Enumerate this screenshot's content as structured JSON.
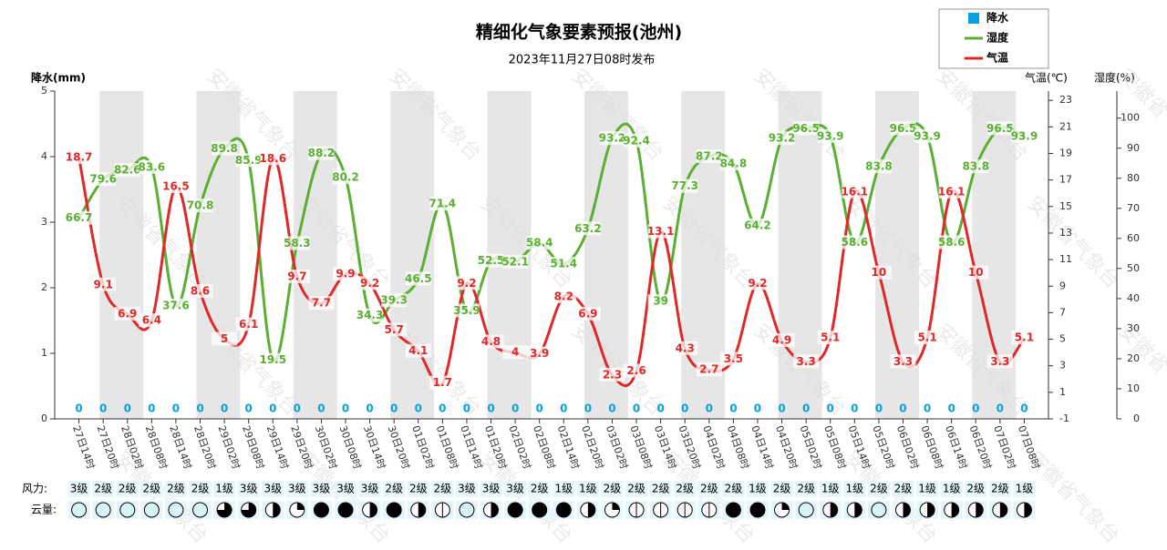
{
  "chart_data": {
    "type": "line",
    "title": "精细化气象要素预报(池州)",
    "subtitle": "2023年11月27日08时发布",
    "watermark": "安徽省气象台",
    "y_label": "降水(mm)",
    "y2_label": "气温(℃)",
    "y3_label": "湿度(%)",
    "categories": [
      "27日14时",
      "27日20时",
      "28日02时",
      "28日08时",
      "28日14时",
      "28日20时",
      "29日02时",
      "29日08时",
      "29日14时",
      "29日20时",
      "30日02时",
      "30日08时",
      "30日14时",
      "30日20时",
      "01日02时",
      "01日08时",
      "01日14时",
      "01日20时",
      "02日02时",
      "02日08时",
      "02日14时",
      "02日20时",
      "03日02时",
      "03日08时",
      "03日14时",
      "03日20时",
      "04日02时",
      "04日08时",
      "04日14时",
      "04日20时",
      "05日02时",
      "05日08时",
      "05日14时",
      "05日20时",
      "06日02时",
      "06日08时",
      "06日14时",
      "06日20时",
      "07日02时",
      "07日08时"
    ],
    "series": [
      {
        "name": "降水",
        "color": "#0aa0e0",
        "axis": "y",
        "values": [
          0,
          0,
          0,
          0,
          0,
          0,
          0,
          0,
          0,
          0,
          0,
          0,
          0,
          0,
          0,
          0,
          0,
          0,
          0,
          0,
          0,
          0,
          0,
          0,
          0,
          0,
          0,
          0,
          0,
          0,
          0,
          0,
          0,
          0,
          0,
          0,
          0,
          0,
          0,
          0
        ]
      },
      {
        "name": "湿度",
        "color": "#5aaf32",
        "axis": "y3",
        "values": [
          66.7,
          79.6,
          82.6,
          83.6,
          37.6,
          70.8,
          89.8,
          85.9,
          19.5,
          58.3,
          88.2,
          80.2,
          34.3,
          39.3,
          46.5,
          71.4,
          35.9,
          52.5,
          52.1,
          58.4,
          51.4,
          63.2,
          93.2,
          92.4,
          39,
          77.3,
          87.2,
          84.8,
          64.2,
          93.2,
          96.5,
          93.9,
          58.6,
          83.8,
          96.5,
          93.9,
          58.6,
          83.8,
          96.5,
          93.9
        ]
      },
      {
        "name": "气温",
        "color": "#e02828",
        "axis": "y2",
        "values": [
          18.7,
          9.1,
          6.9,
          6.4,
          16.5,
          8.6,
          5,
          6.1,
          18.6,
          9.7,
          7.7,
          9.9,
          9.2,
          5.7,
          4.1,
          1.7,
          9.2,
          4.8,
          4,
          3.9,
          8.2,
          6.9,
          2.3,
          2.6,
          13.1,
          4.3,
          2.7,
          3.5,
          9.2,
          4.9,
          3.3,
          5.1,
          16.1,
          10,
          3.3,
          5.1,
          16.1,
          10,
          3.3,
          5.1
        ]
      }
    ],
    "ylim": [
      0,
      5
    ],
    "yticks": [
      0,
      1,
      2,
      3,
      4,
      5
    ],
    "y2lim": [
      -1,
      23.7
    ],
    "y2ticks": [
      -1,
      1,
      3,
      5,
      7,
      9,
      11,
      13,
      15,
      17,
      19,
      21,
      23
    ],
    "y3lim": [
      0,
      109
    ],
    "y3ticks": [
      0,
      10,
      20,
      30,
      40,
      50,
      60,
      70,
      80,
      90,
      100
    ],
    "wind_label": "风力:",
    "wind": [
      "3级",
      "2级",
      "2级",
      "2级",
      "2级",
      "2级",
      "1级",
      "3级",
      "3级",
      "3级",
      "3级",
      "3级",
      "3级",
      "2级",
      "2级",
      "2级",
      "3级",
      "3级",
      "3级",
      "2级",
      "1级",
      "1级",
      "2级",
      "2级",
      "2级",
      "2级",
      "2级",
      "2级",
      "1级",
      "2级",
      "2级",
      "1级",
      "1级",
      "2级",
      "2级",
      "1级",
      "1级",
      "2级",
      "2级",
      "1级"
    ],
    "cloud_label": "云量:",
    "cloud_cover": [
      0,
      0,
      0,
      0,
      0,
      0,
      0.75,
      0.75,
      0.5,
      0.25,
      1,
      1,
      0.5,
      1,
      0.5,
      0.1,
      0,
      0.5,
      1,
      1,
      1,
      0.5,
      0.25,
      0.1,
      0.1,
      0.1,
      0.1,
      1,
      1,
      0.25,
      0,
      0.5,
      0.5,
      0,
      0.5,
      0.5,
      0.5,
      0.5,
      0.5,
      0.5
    ]
  }
}
